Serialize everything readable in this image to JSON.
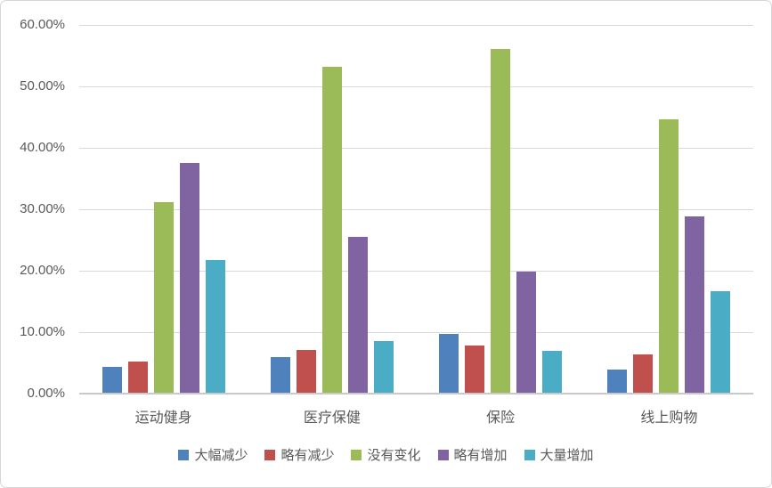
{
  "chart_data": {
    "type": "bar",
    "title": "",
    "xlabel": "",
    "ylabel": "",
    "categories": [
      "运动健身",
      "医疗保健",
      "保险",
      "线上购物"
    ],
    "series": [
      {
        "name": "大幅减少",
        "color": "#4F81BD",
        "values": [
          4.3,
          6.0,
          9.7,
          3.9
        ]
      },
      {
        "name": "略有减少",
        "color": "#C0504D",
        "values": [
          5.2,
          7.1,
          7.8,
          6.4
        ]
      },
      {
        "name": "没有变化",
        "color": "#9BBB59",
        "values": [
          31.2,
          53.2,
          56.1,
          44.6
        ]
      },
      {
        "name": "略有增加",
        "color": "#8064A2",
        "values": [
          37.5,
          25.5,
          19.9,
          28.9
        ]
      },
      {
        "name": "大量增加",
        "color": "#4BACC6",
        "values": [
          21.8,
          8.5,
          6.9,
          16.6
        ]
      }
    ],
    "ylim": [
      0,
      60
    ],
    "ytick_step": 10,
    "yticks": [
      "0.00%",
      "10.00%",
      "20.00%",
      "30.00%",
      "40.00%",
      "50.00%",
      "60.00%"
    ],
    "grid": true,
    "legend_position": "bottom",
    "colors": {
      "gridline": "#D9D9D9",
      "axis_line": "#C9C9C9",
      "axis_text": "#595959",
      "background": "#FFFFFF",
      "frame_border": "#D6D6D6"
    }
  }
}
